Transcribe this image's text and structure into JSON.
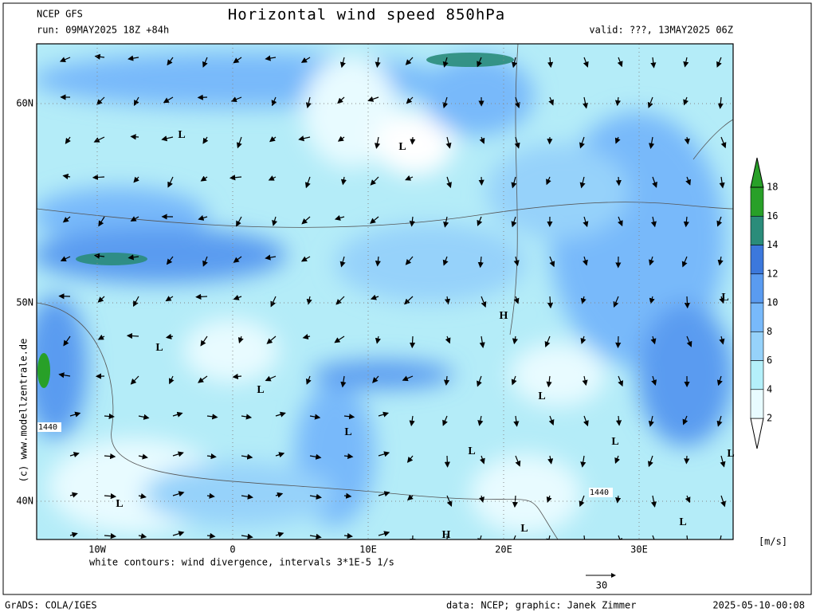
{
  "header": {
    "model": "NCEP GFS",
    "title": "Horizontal wind speed 850hPa",
    "run": "run: 09MAY2025 18Z +84h",
    "valid": "valid: ???, 13MAY2025 06Z"
  },
  "map": {
    "lat_labels": [
      "60N",
      "50N",
      "40N"
    ],
    "lon_labels": [
      "10W",
      "0",
      "10E",
      "20E",
      "30E"
    ],
    "pressure_centers": [
      "L",
      "L",
      "L",
      "L",
      "L",
      "H",
      "L",
      "L",
      "L",
      "L",
      "L",
      "L",
      "L",
      "L",
      "H"
    ],
    "contour_labels": [
      "1440",
      "1440"
    ],
    "note": "white contours: wind divergence, intervals 3*1E-5 1/s",
    "watermark": "(c) www.modellzentrale.de"
  },
  "colorbar": {
    "ticks": [
      2,
      4,
      6,
      8,
      10,
      12,
      14,
      16,
      18
    ],
    "unit": "[m/s]"
  },
  "reference_arrow": {
    "label": "30"
  },
  "footer": {
    "software": "GrADS: COLA/IGES",
    "credit": "data: NCEP; graphic: Janek Zimmer",
    "timestamp": "2025-05-10-00:08"
  }
}
